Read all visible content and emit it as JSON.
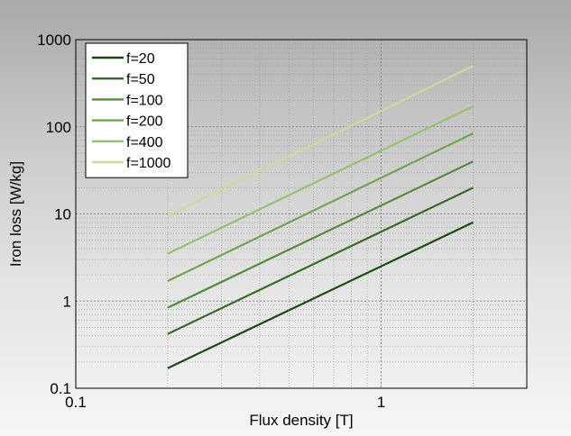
{
  "chart_data": {
    "type": "line",
    "title": "",
    "xlabel": "Flux density [T]",
    "ylabel": "Iron loss [W/kg]",
    "xscale": "log",
    "yscale": "log",
    "xlim": [
      0.1,
      3
    ],
    "ylim": [
      0.1,
      1000
    ],
    "x_ticks": [
      "0.1",
      "1"
    ],
    "y_ticks": [
      "0.1",
      "1",
      "10",
      "100",
      "1000"
    ],
    "grid": true,
    "legend_position": "top-left",
    "series": [
      {
        "name": "f=20",
        "color": "#1e4a14",
        "x": [
          0.2,
          2.0
        ],
        "y": [
          0.17,
          8
        ]
      },
      {
        "name": "f=50",
        "color": "#3a6a28",
        "x": [
          0.2,
          2.0
        ],
        "y": [
          0.42,
          20
        ]
      },
      {
        "name": "f=100",
        "color": "#568a3c",
        "x": [
          0.2,
          2.0
        ],
        "y": [
          0.84,
          40
        ]
      },
      {
        "name": "f=200",
        "color": "#74a452",
        "x": [
          0.2,
          2.0
        ],
        "y": [
          1.7,
          84
        ]
      },
      {
        "name": "f=400",
        "color": "#99c070",
        "x": [
          0.2,
          2.0
        ],
        "y": [
          3.5,
          172
        ]
      },
      {
        "name": "f=1000",
        "color": "#c9dc98",
        "x": [
          0.2,
          2.0
        ],
        "y": [
          9.5,
          500
        ]
      }
    ]
  }
}
